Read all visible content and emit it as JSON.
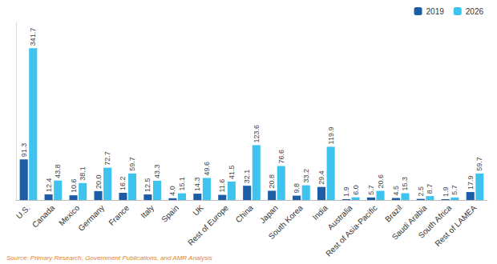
{
  "chart_data": {
    "type": "bar",
    "categories": [
      "U.S.",
      "Canada",
      "Mexico",
      "Germany",
      "France",
      "Italy",
      "Spain",
      "UK",
      "Rest of Europe",
      "China",
      "Japan",
      "South Korea",
      "India",
      "Australia",
      "Rest of Asia-Pacific",
      "Brazil",
      "Saudi Arabia",
      "South Africa",
      "Rest of LAMEA"
    ],
    "series": [
      {
        "name": "2019",
        "color": "#1c5da6",
        "values": [
          91.3,
          12.4,
          10.6,
          20.0,
          16.2,
          12.5,
          4.0,
          14.3,
          11.6,
          32.1,
          20.8,
          9.8,
          29.4,
          1.9,
          5.7,
          4.5,
          2.5,
          1.9,
          17.9
        ],
        "value_labels": [
          "91.3",
          "12.4",
          "10.6",
          "20.0",
          "16.2",
          "12.5",
          "4.0",
          "14.3",
          "11.6",
          "32.1",
          "20.8",
          "9.8",
          "29.4",
          "1.9",
          "5.7",
          "4.5",
          "2.5",
          "1.9",
          "17.9"
        ]
      },
      {
        "name": "2026",
        "color": "#3ec3ee",
        "values": [
          341.7,
          43.8,
          38.1,
          72.7,
          59.7,
          43.3,
          15.1,
          49.6,
          41.5,
          123.6,
          76.6,
          33.2,
          119.9,
          6.0,
          20.6,
          15.3,
          8.7,
          5.7,
          59.7
        ],
        "value_labels": [
          "341.7",
          "43.8",
          "38.1",
          "72.7",
          "59.7",
          "43.3",
          "15.1",
          "49.6",
          "41.5",
          "123.6",
          "76.6",
          "33.2",
          "119.9",
          "6.0",
          "20.6",
          "15.3",
          "8.7",
          "5.7",
          "59.7"
        ]
      }
    ],
    "ylim": [
      0,
      400
    ],
    "grid": false,
    "legend": "top-right",
    "data_labels": true,
    "tick_labels": "x",
    "source": "Source: Primary Research, Government Publications, and AMR Analysis"
  }
}
